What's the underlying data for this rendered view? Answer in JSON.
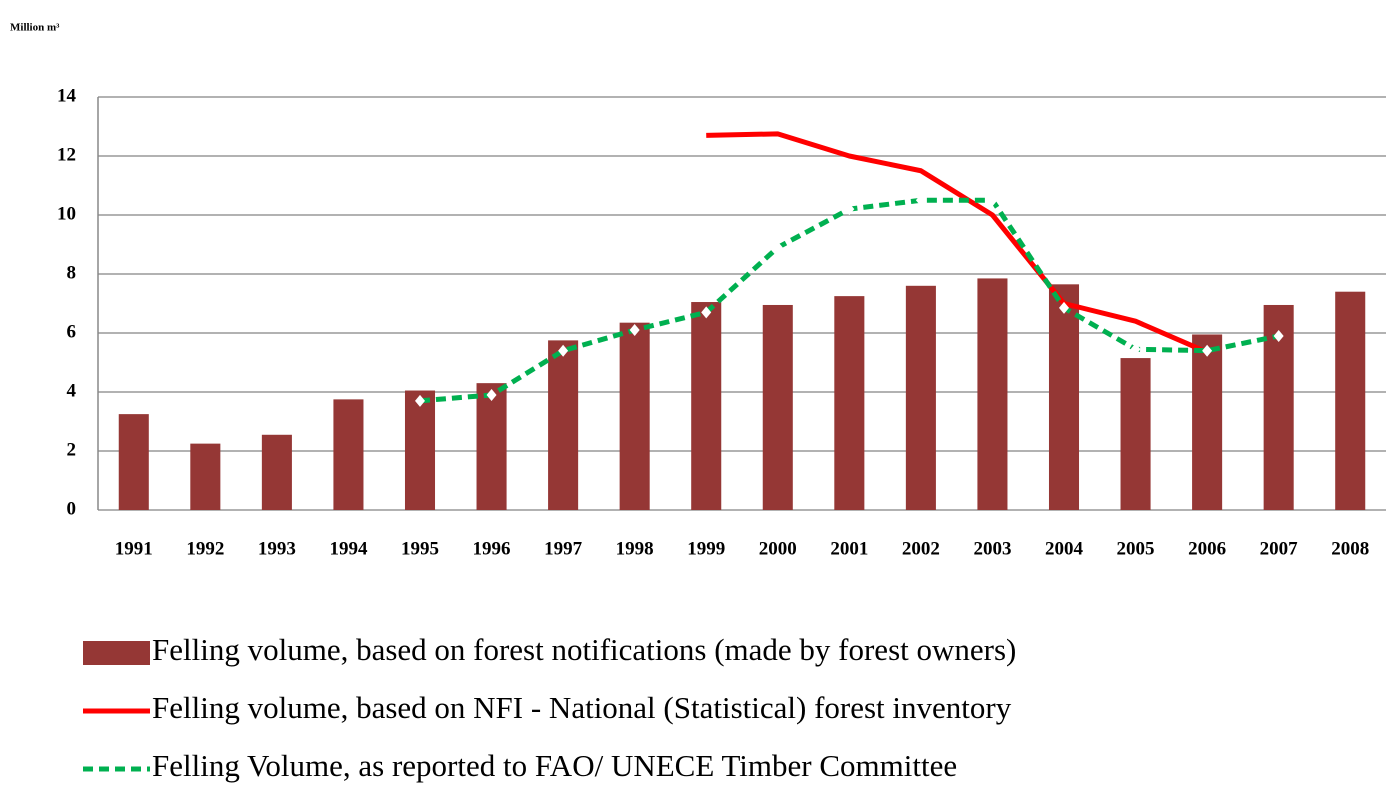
{
  "chart_data": {
    "type": "bar",
    "y_label": "Million m³",
    "categories": [
      "1991",
      "1992",
      "1993",
      "1994",
      "1995",
      "1996",
      "1997",
      "1998",
      "1999",
      "2000",
      "2001",
      "2002",
      "2003",
      "2004",
      "2005",
      "2006",
      "2007",
      "2008"
    ],
    "series": [
      {
        "name": "Felling volume, based on forest notifications (made by forest owners)",
        "type": "bar",
        "color": "#953735",
        "values": [
          3.25,
          2.25,
          2.55,
          3.75,
          4.05,
          4.3,
          5.75,
          6.35,
          7.05,
          6.95,
          7.25,
          7.6,
          7.85,
          7.65,
          5.15,
          5.95,
          6.95,
          7.4
        ]
      },
      {
        "name": "Felling volume, based on NFI - National (Statistical) forest inventory",
        "type": "line",
        "color": "#ff0000",
        "dashed": false,
        "values": [
          null,
          null,
          null,
          null,
          null,
          null,
          null,
          null,
          12.7,
          12.75,
          12.0,
          11.5,
          10.0,
          7.0,
          6.4,
          5.35,
          null,
          null
        ]
      },
      {
        "name": "Felling Volume, as reported to FAO/  UNECE Timber Committee",
        "type": "line",
        "color": "#00b050",
        "dashed": true,
        "markers": true,
        "values": [
          null,
          null,
          null,
          null,
          3.7,
          3.9,
          5.4,
          6.1,
          6.7,
          8.9,
          10.2,
          10.5,
          10.5,
          6.85,
          5.45,
          5.4,
          5.9,
          null
        ]
      }
    ],
    "ylim": [
      0,
      14
    ],
    "yticks": [
      0,
      2,
      4,
      6,
      8,
      10,
      12,
      14
    ],
    "grid": true,
    "legend": "bottom"
  }
}
